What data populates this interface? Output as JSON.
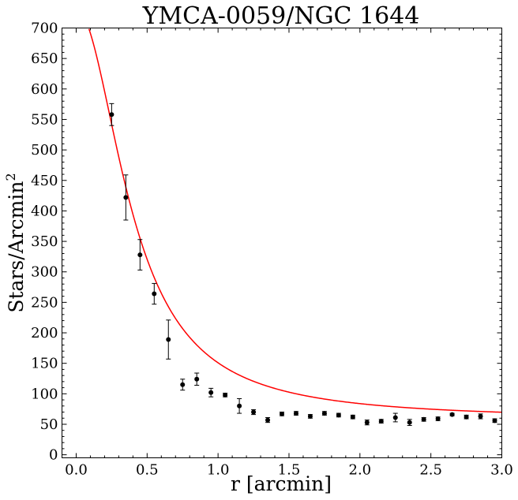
{
  "chart_data": {
    "type": "scatter",
    "title": "YMCA-0059/NGC 1644",
    "xlabel": "r [arcmin]",
    "ylabel_main": "Stars/Arcmin",
    "ylabel_sup": "2",
    "xlim": [
      -0.1,
      3.0
    ],
    "ylim": [
      -5,
      700
    ],
    "x_ticks": [
      0.0,
      0.5,
      1.0,
      1.5,
      2.0,
      2.5,
      3.0
    ],
    "x_tick_labels": [
      "0.0",
      "0.5",
      "1.0",
      "1.5",
      "2.0",
      "2.5",
      "3.0"
    ],
    "y_ticks": [
      0,
      50,
      100,
      150,
      200,
      250,
      300,
      350,
      400,
      450,
      500,
      550,
      600,
      650,
      700
    ],
    "y_tick_labels": [
      "0",
      "50",
      "100",
      "150",
      "200",
      "250",
      "300",
      "350",
      "400",
      "450",
      "500",
      "550",
      "600",
      "650",
      "700"
    ],
    "points": [
      {
        "x": 0.25,
        "y": 558,
        "err": 18
      },
      {
        "x": 0.35,
        "y": 422,
        "err": 37
      },
      {
        "x": 0.45,
        "y": 328,
        "err": 25
      },
      {
        "x": 0.55,
        "y": 264,
        "err": 17
      },
      {
        "x": 0.65,
        "y": 189,
        "err": 32
      },
      {
        "x": 0.75,
        "y": 115,
        "err": 9
      },
      {
        "x": 0.85,
        "y": 124,
        "err": 10
      },
      {
        "x": 0.95,
        "y": 102,
        "err": 7
      },
      {
        "x": 1.05,
        "y": 98,
        "err": 3
      },
      {
        "x": 1.15,
        "y": 80,
        "err": 12
      },
      {
        "x": 1.25,
        "y": 70,
        "err": 4
      },
      {
        "x": 1.35,
        "y": 57,
        "err": 4
      },
      {
        "x": 1.45,
        "y": 67,
        "err": 3
      },
      {
        "x": 1.55,
        "y": 68,
        "err": 3
      },
      {
        "x": 1.65,
        "y": 63,
        "err": 3
      },
      {
        "x": 1.75,
        "y": 68,
        "err": 3
      },
      {
        "x": 1.85,
        "y": 65,
        "err": 3
      },
      {
        "x": 1.95,
        "y": 62,
        "err": 3
      },
      {
        "x": 2.05,
        "y": 53,
        "err": 4
      },
      {
        "x": 2.15,
        "y": 55,
        "err": 3
      },
      {
        "x": 2.25,
        "y": 61,
        "err": 7
      },
      {
        "x": 2.35,
        "y": 53,
        "err": 5
      },
      {
        "x": 2.45,
        "y": 58,
        "err": 3
      },
      {
        "x": 2.55,
        "y": 59,
        "err": 3
      },
      {
        "x": 2.65,
        "y": 66,
        "err": 2
      },
      {
        "x": 2.75,
        "y": 62,
        "err": 3
      },
      {
        "x": 2.85,
        "y": 63,
        "err": 4
      },
      {
        "x": 2.95,
        "y": 56,
        "err": 3
      }
    ],
    "fit": {
      "model": "king",
      "background": 58,
      "central_density": 673,
      "core_radius": 0.4,
      "color": "#ff0000"
    },
    "marker_color": "#000000",
    "grid": false
  }
}
